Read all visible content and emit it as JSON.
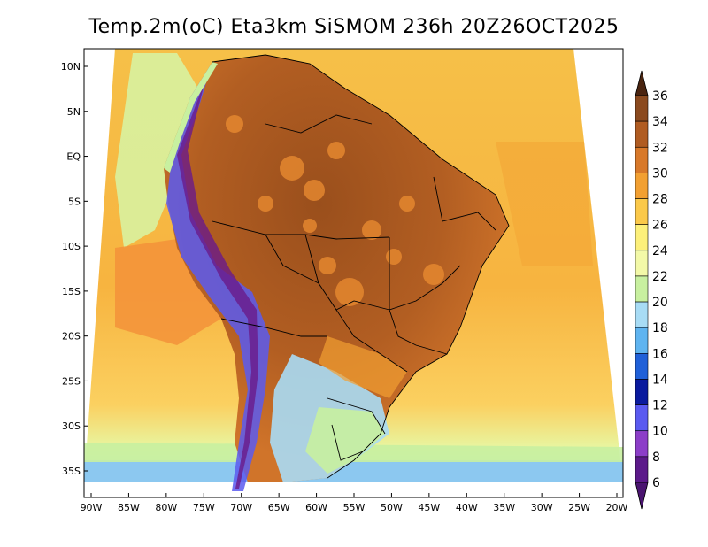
{
  "title": "Temp.2m(oC) Eta3km SiSMOM 236h 20Z26OCT2025",
  "map": {
    "lon_labels": [
      "90W",
      "85W",
      "80W",
      "75W",
      "70W",
      "65W",
      "60W",
      "55W",
      "50W",
      "45W",
      "40W",
      "35W",
      "30W",
      "25W",
      "20W"
    ],
    "lat_labels": [
      "10N",
      "5N",
      "EQ",
      "5S",
      "10S",
      "15S",
      "20S",
      "25S",
      "30S",
      "35S"
    ],
    "lon_range": [
      -90,
      -20
    ],
    "lat_range": [
      -37,
      11
    ],
    "variable": "2 m temperature",
    "units": "oC"
  },
  "colorbar": {
    "labels": [
      "36",
      "34",
      "32",
      "30",
      "28",
      "26",
      "24",
      "22",
      "20",
      "18",
      "16",
      "14",
      "12",
      "10",
      "8",
      "6"
    ],
    "colors": [
      "#5a2a14",
      "#8b4a1f",
      "#b05c22",
      "#d8792a",
      "#f2a032",
      "#fbc94a",
      "#fdf07a",
      "#f3f9a8",
      "#c8f0a0",
      "#a8dcf5",
      "#5fb4f0",
      "#2060d8",
      "#0a1a9e",
      "#5a5af0",
      "#8c3ec8",
      "#5c1a8a"
    ],
    "top_arrow_color": "#4a2410",
    "bottom_arrow_color": "#4a1470"
  }
}
